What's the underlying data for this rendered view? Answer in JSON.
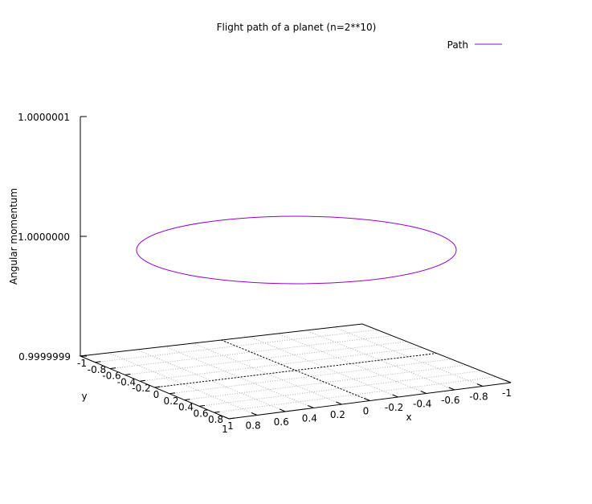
{
  "chart_data": {
    "type": "line",
    "title": "Flight path of a planet (n=2**10)",
    "xlabel": "x",
    "ylabel": "y",
    "zlabel": "Angular momentum",
    "legend": {
      "entries": [
        {
          "name": "Path",
          "color": "#9400d3"
        }
      ],
      "position": "top-right"
    },
    "xlim": [
      -1,
      1
    ],
    "ylim": [
      -1,
      1
    ],
    "zlim": [
      0.9999999,
      1.0000001
    ],
    "x_ticks": [
      "1",
      "0.8",
      "0.6",
      "0.4",
      "0.2",
      "0",
      "-0.2",
      "-0.4",
      "-0.6",
      "-0.8",
      "-1"
    ],
    "y_ticks": [
      "-1",
      "-0.8",
      "-0.6",
      "-0.4",
      "-0.2",
      "0",
      "0.2",
      "0.4",
      "0.6",
      "0.8",
      "1"
    ],
    "z_ticks": [
      "1.0000001",
      "1.0000000",
      "0.9999999"
    ],
    "grid": true,
    "series": [
      {
        "name": "Path",
        "shape": "unit circle",
        "radius": 1,
        "z": 1.0,
        "color": "#9400d3"
      }
    ]
  }
}
